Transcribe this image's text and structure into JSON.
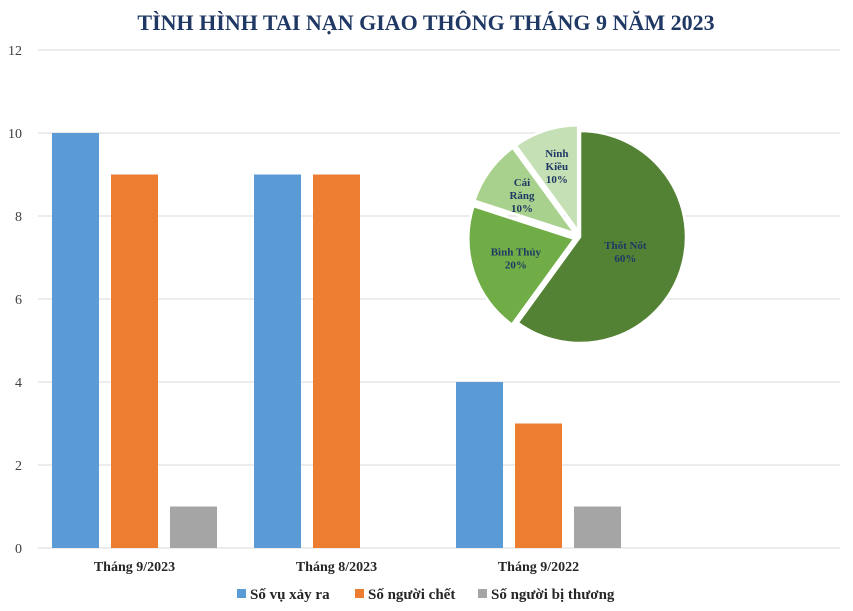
{
  "chart_data": [
    {
      "type": "bar",
      "title": "TÌNH HÌNH TAI NẠN GIAO THÔNG THÁNG 9 NĂM 2023",
      "categories": [
        "Tháng 9/2023",
        "Tháng 8/2023",
        "Tháng 9/2022"
      ],
      "series": [
        {
          "name": "Số vụ xảy ra",
          "values": [
            10,
            9,
            4
          ],
          "color": "#5b9bd5"
        },
        {
          "name": "Số người chết",
          "values": [
            9,
            9,
            3
          ],
          "color": "#ed7d31"
        },
        {
          "name": "Số người bị thương",
          "values": [
            1,
            0,
            1
          ],
          "color": "#a5a5a5"
        }
      ],
      "ylim": [
        0,
        12
      ],
      "yticks": [
        "0",
        "2",
        "4",
        "6",
        "8",
        "10",
        "12"
      ],
      "grid": true,
      "legend": "bottom"
    },
    {
      "type": "pie",
      "slices": [
        {
          "label": "Thốt Nốt",
          "pct": "60%",
          "value": 60,
          "color": "#548235"
        },
        {
          "label": "Bình Thủy",
          "pct": "20%",
          "value": 20,
          "color": "#70ad47"
        },
        {
          "label": "Cái Răng",
          "pct": "10%",
          "value": 10,
          "color": "#a9d18e"
        },
        {
          "label": "Ninh Kiều",
          "pct": "10%",
          "value": 10,
          "color": "#c5e0b4"
        }
      ]
    }
  ]
}
